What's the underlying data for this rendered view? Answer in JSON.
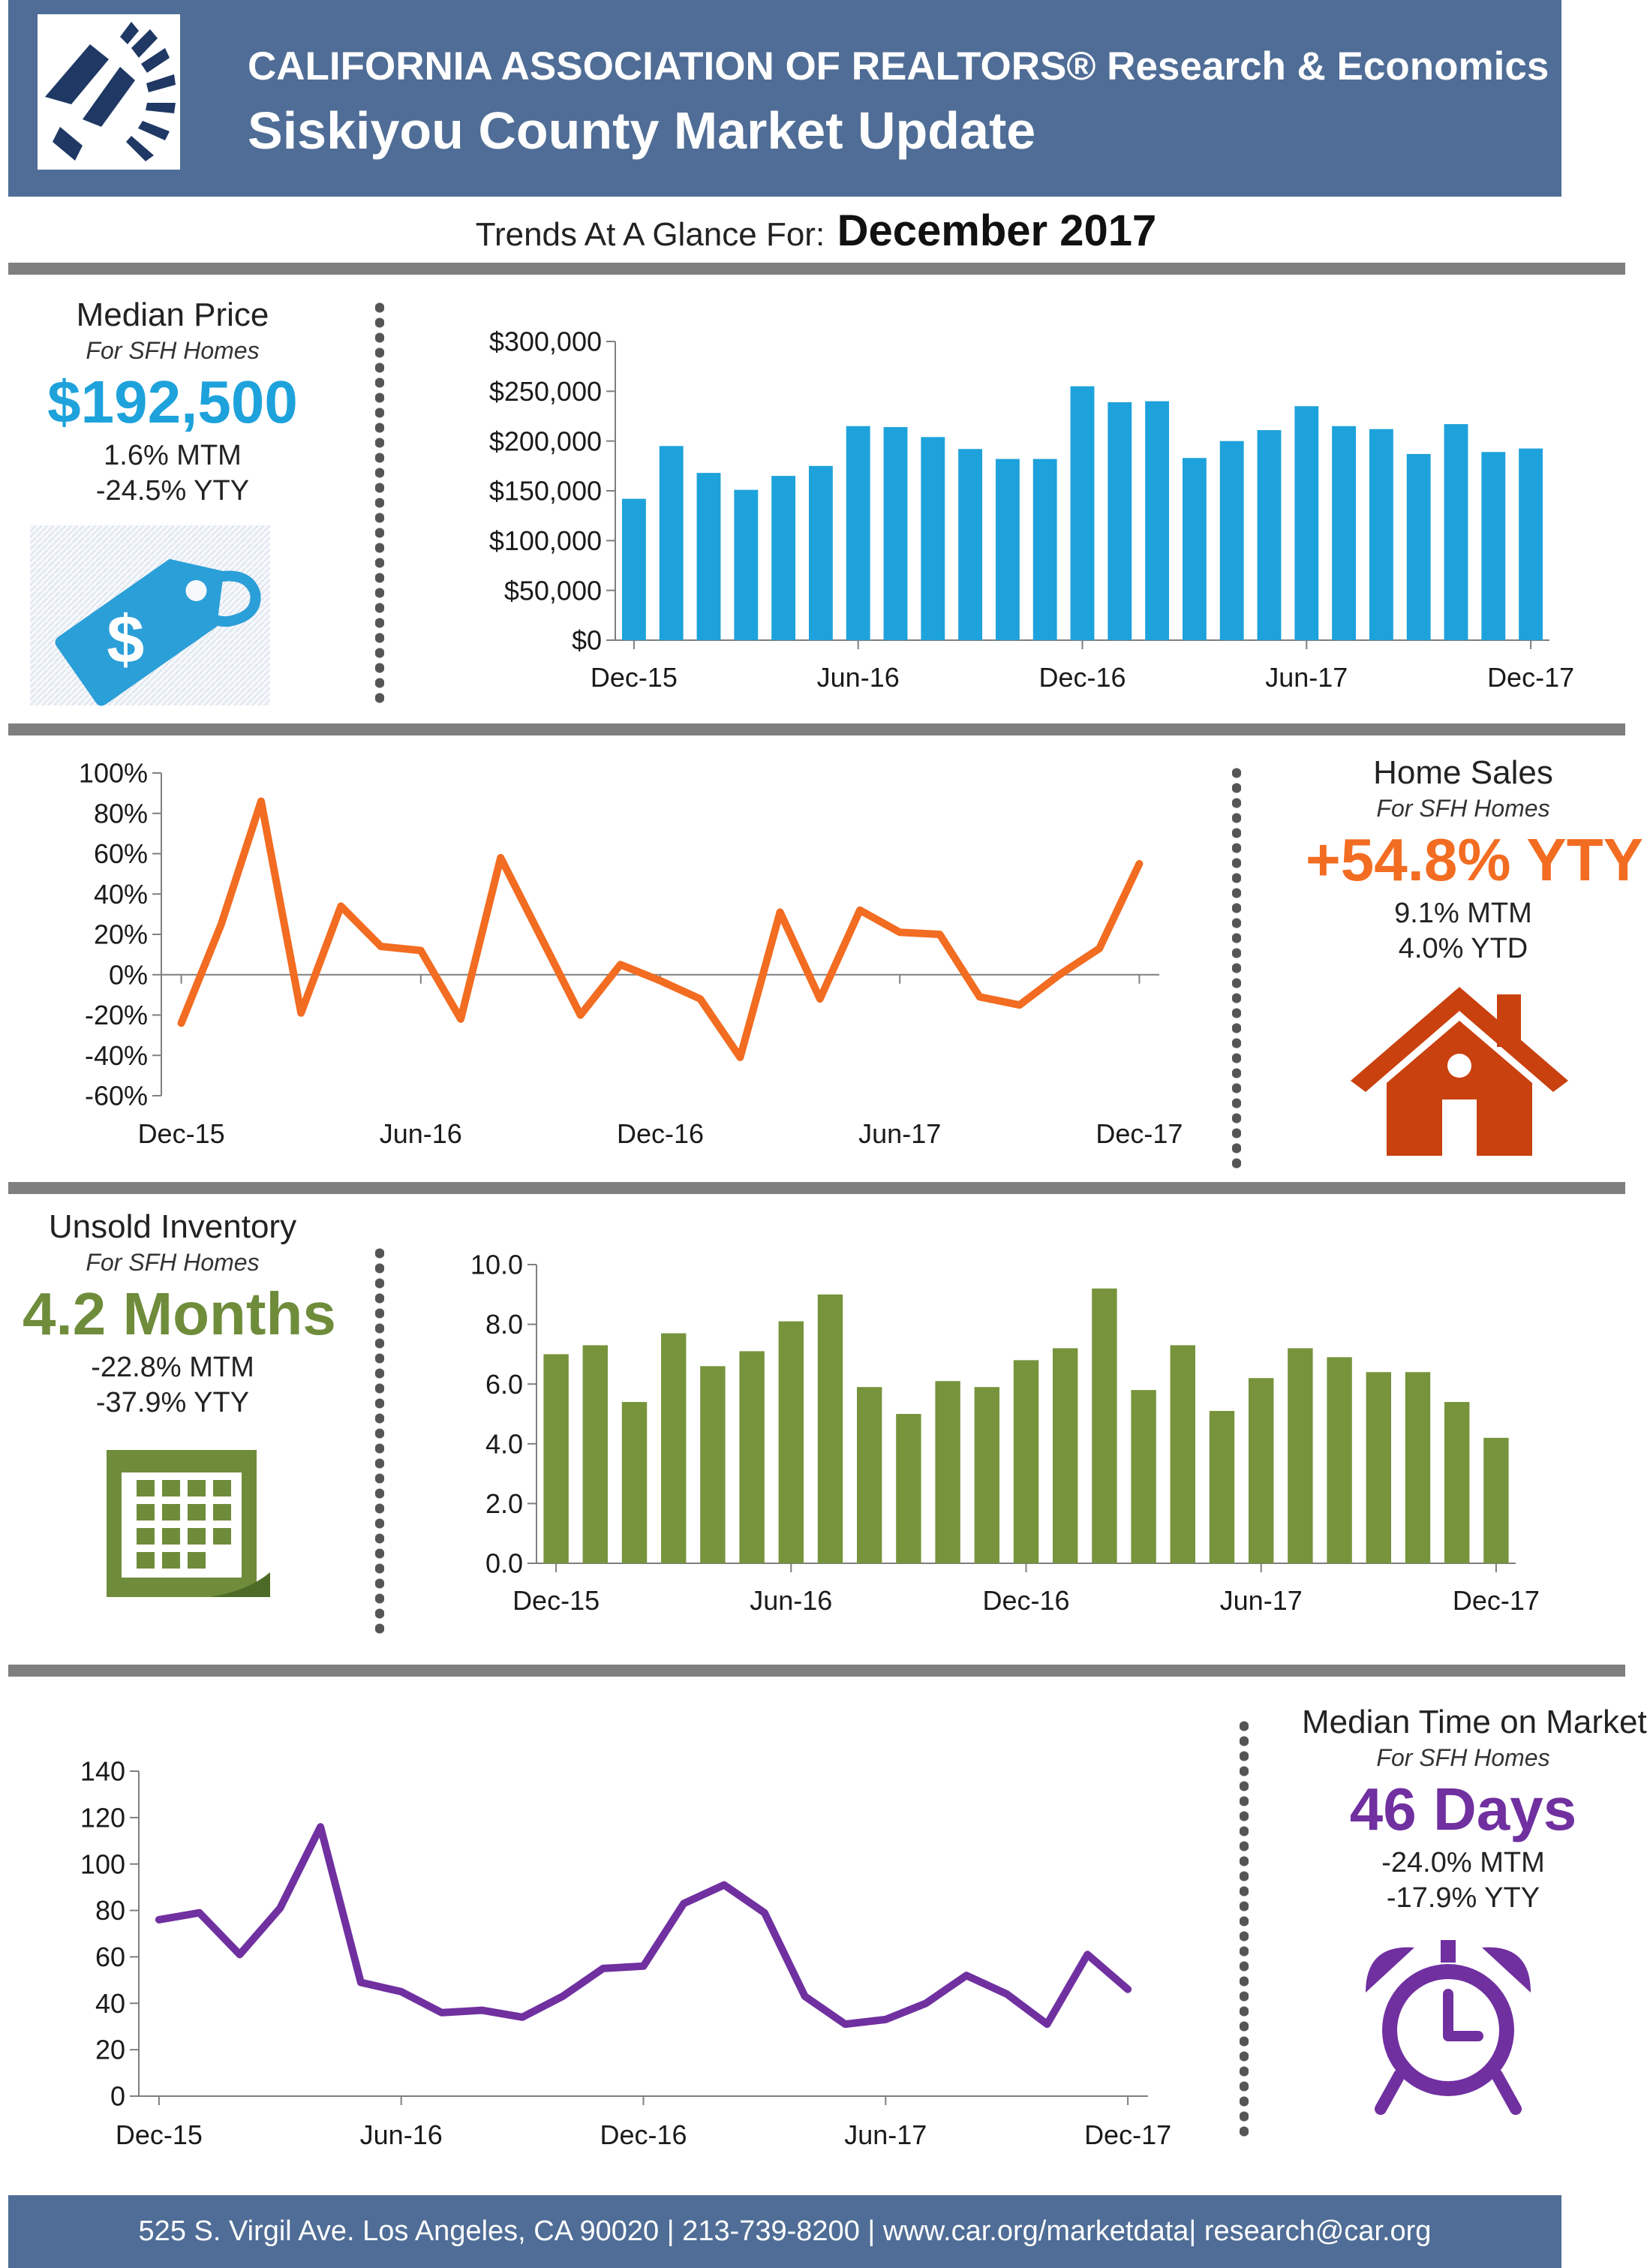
{
  "header": {
    "org": "CALIFORNIA ASSOCIATION OF REALTORS® Research & Economics",
    "title": "Siskiyou County Market Update"
  },
  "trends": {
    "label": "Trends At A Glance For:",
    "date": "December 2017"
  },
  "panels": {
    "median_price": {
      "title": "Median Price",
      "subtitle": "For SFH Homes",
      "value": "$192,500",
      "mtm": "1.6% MTM",
      "yty": "-24.5% YTY",
      "accent": "#1ea2db",
      "icon": "price-tag-icon"
    },
    "home_sales": {
      "title": "Home Sales",
      "subtitle": "For SFH Homes",
      "value": "+54.8% YTY",
      "mtm": "9.1% MTM",
      "ytd": "4.0% YTD",
      "accent": "#f26c21",
      "icon": "house-icon"
    },
    "inventory": {
      "title": "Unsold Inventory",
      "subtitle": "For SFH Homes",
      "value": "4.2 Months",
      "mtm": "-22.8% MTM",
      "yty": "-37.9% YTY",
      "accent": "#6f8c3b",
      "icon": "calendar-icon"
    },
    "time_on_market": {
      "title": "Median Time on Market",
      "subtitle": "For SFH Homes",
      "value": "46 Days",
      "mtm": "-24.0% MTM",
      "yty": "-17.9% YTY",
      "accent": "#7030a0",
      "icon": "alarm-clock-icon"
    }
  },
  "footer": {
    "text": "525 S. Virgil Ave. Los Angeles, CA 90020  |  213-739-8200  |  www.car.org/marketdata|  research@car.org"
  },
  "chart_data": [
    {
      "id": "price",
      "type": "bar",
      "color": "#1ea2db",
      "x": [
        "Dec-15",
        "Jan-16",
        "Feb-16",
        "Mar-16",
        "Apr-16",
        "May-16",
        "Jun-16",
        "Jul-16",
        "Aug-16",
        "Sep-16",
        "Oct-16",
        "Nov-16",
        "Dec-16",
        "Jan-17",
        "Feb-17",
        "Mar-17",
        "Apr-17",
        "May-17",
        "Jun-17",
        "Jul-17",
        "Aug-17",
        "Sep-17",
        "Oct-17",
        "Nov-17",
        "Dec-17"
      ],
      "values": [
        142000,
        195000,
        168000,
        151000,
        165000,
        175000,
        215000,
        214000,
        204000,
        192000,
        182000,
        182000,
        255000,
        239000,
        240000,
        183000,
        200000,
        211000,
        235000,
        215000,
        212000,
        187000,
        217000,
        189000,
        192500
      ],
      "yticks": [
        0,
        50000,
        100000,
        150000,
        200000,
        250000,
        300000
      ],
      "ytick_labels": [
        "$0",
        "$50,000",
        "$100,000",
        "$150,000",
        "$200,000",
        "$250,000",
        "$300,000"
      ],
      "xtick_labels": [
        "Dec-15",
        "Jun-16",
        "Dec-16",
        "Jun-17",
        "Dec-17"
      ],
      "ylim": [
        0,
        300000
      ]
    },
    {
      "id": "sales",
      "type": "line",
      "color": "#f26c21",
      "x": [
        "Dec-15",
        "Jan-16",
        "Feb-16",
        "Mar-16",
        "Apr-16",
        "May-16",
        "Jun-16",
        "Jul-16",
        "Aug-16",
        "Sep-16",
        "Oct-16",
        "Nov-16",
        "Dec-16",
        "Jan-17",
        "Feb-17",
        "Mar-17",
        "Apr-17",
        "May-17",
        "Jun-17",
        "Jul-17",
        "Aug-17",
        "Sep-17",
        "Oct-17",
        "Nov-17",
        "Dec-17"
      ],
      "values": [
        -24,
        25,
        86,
        -19,
        34,
        14,
        12,
        -22,
        58,
        19,
        -20,
        5,
        -3,
        -12,
        -41,
        31,
        -12,
        32,
        21,
        20,
        -11,
        -15,
        0,
        13,
        55
      ],
      "yticks": [
        -60,
        -40,
        -20,
        0,
        20,
        40,
        60,
        80,
        100
      ],
      "ytick_labels": [
        "-60%",
        "-40%",
        "-20%",
        "0%",
        "20%",
        "40%",
        "60%",
        "80%",
        "100%"
      ],
      "xtick_labels": [
        "Dec-15",
        "Jun-16",
        "Dec-16",
        "Jun-17",
        "Dec-17"
      ],
      "ylim": [
        -60,
        100
      ]
    },
    {
      "id": "inventory",
      "type": "bar",
      "color": "#77933c",
      "x": [
        "Dec-15",
        "Jan-16",
        "Feb-16",
        "Mar-16",
        "Apr-16",
        "May-16",
        "Jun-16",
        "Jul-16",
        "Aug-16",
        "Sep-16",
        "Oct-16",
        "Nov-16",
        "Dec-16",
        "Jan-17",
        "Feb-17",
        "Mar-17",
        "Apr-17",
        "May-17",
        "Jun-17",
        "Jul-17",
        "Aug-17",
        "Sep-17",
        "Oct-17",
        "Nov-17",
        "Dec-17"
      ],
      "values": [
        7.0,
        7.3,
        5.4,
        7.7,
        6.6,
        7.1,
        8.1,
        9.0,
        5.9,
        5.0,
        6.1,
        5.9,
        6.8,
        7.2,
        9.2,
        5.8,
        7.3,
        5.1,
        6.2,
        7.2,
        6.9,
        6.4,
        6.4,
        5.4,
        4.2
      ],
      "yticks": [
        0,
        2,
        4,
        6,
        8,
        10
      ],
      "ytick_labels": [
        "0.0",
        "2.0",
        "4.0",
        "6.0",
        "8.0",
        "10.0"
      ],
      "xtick_labels": [
        "Dec-15",
        "Jun-16",
        "Dec-16",
        "Jun-17",
        "Dec-17"
      ],
      "ylim": [
        0,
        10
      ]
    },
    {
      "id": "dom",
      "type": "line",
      "color": "#7030a0",
      "x": [
        "Dec-15",
        "Jan-16",
        "Feb-16",
        "Mar-16",
        "Apr-16",
        "May-16",
        "Jun-16",
        "Jul-16",
        "Aug-16",
        "Sep-16",
        "Oct-16",
        "Nov-16",
        "Dec-16",
        "Jan-17",
        "Feb-17",
        "Mar-17",
        "Apr-17",
        "May-17",
        "Jun-17",
        "Jul-17",
        "Aug-17",
        "Sep-17",
        "Oct-17",
        "Nov-17",
        "Dec-17"
      ],
      "values": [
        76,
        79,
        61,
        81,
        116,
        49,
        45,
        36,
        37,
        34,
        43,
        55,
        56,
        83,
        91,
        79,
        43,
        31,
        33,
        40,
        52,
        44,
        31,
        61,
        46
      ],
      "yticks": [
        0,
        20,
        40,
        60,
        80,
        100,
        120,
        140
      ],
      "ytick_labels": [
        "0",
        "20",
        "40",
        "60",
        "80",
        "100",
        "120",
        "140"
      ],
      "xtick_labels": [
        "Dec-15",
        "Jun-16",
        "Dec-16",
        "Jun-17",
        "Dec-17"
      ],
      "ylim": [
        0,
        140
      ]
    }
  ]
}
